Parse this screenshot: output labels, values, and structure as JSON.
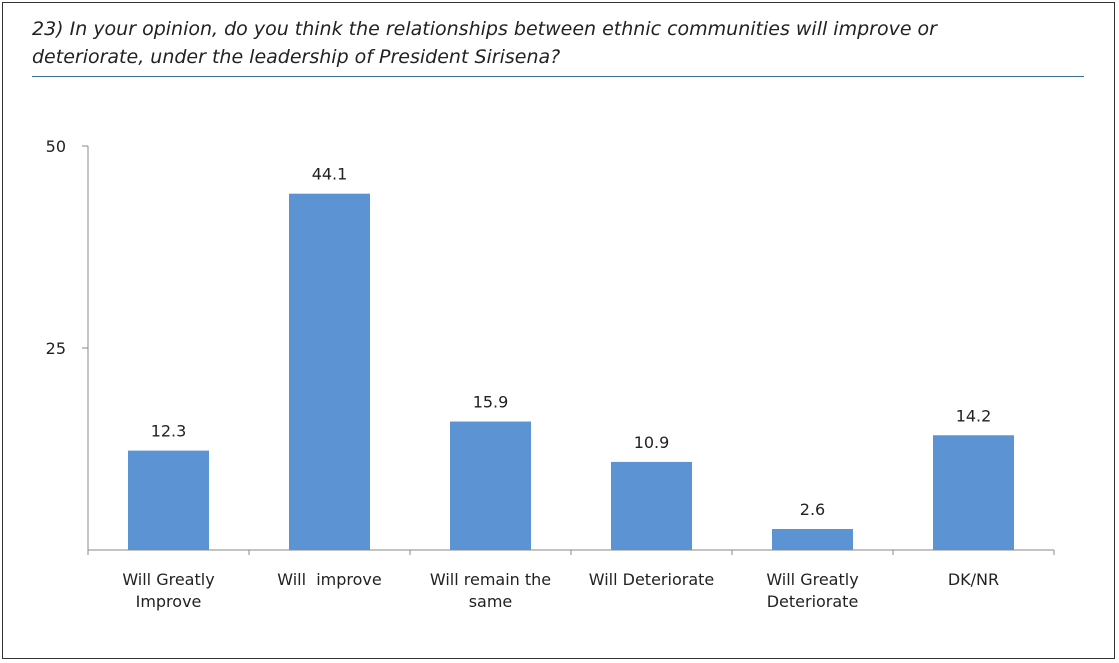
{
  "question": {
    "line1": "23) In your opinion, do you think the relationships between ethnic communities will improve or",
    "line2": "deteriorate, under the leadership of President Sirisena?"
  },
  "colors": {
    "bar": "#5b93d3",
    "axis": "#888888",
    "rule": "#3b6c94"
  },
  "chart_data": {
    "type": "bar",
    "categories": [
      [
        "Will Greatly",
        "Improve"
      ],
      [
        "Will  improve"
      ],
      [
        "Will remain the",
        "same"
      ],
      [
        "Will Deteriorate"
      ],
      [
        "Will Greatly",
        "Deteriorate"
      ],
      [
        "DK/NR"
      ]
    ],
    "values": [
      12.3,
      44.1,
      15.9,
      10.9,
      2.6,
      14.2
    ],
    "data_labels": [
      "12.3",
      "44.1",
      "15.9",
      "10.9",
      "2.6",
      "14.2"
    ],
    "yticks": [
      {
        "value": 25,
        "label": "25"
      },
      {
        "value": 50,
        "label": "50"
      }
    ],
    "ylim": [
      0,
      50
    ],
    "grid": false,
    "legend": "none"
  }
}
